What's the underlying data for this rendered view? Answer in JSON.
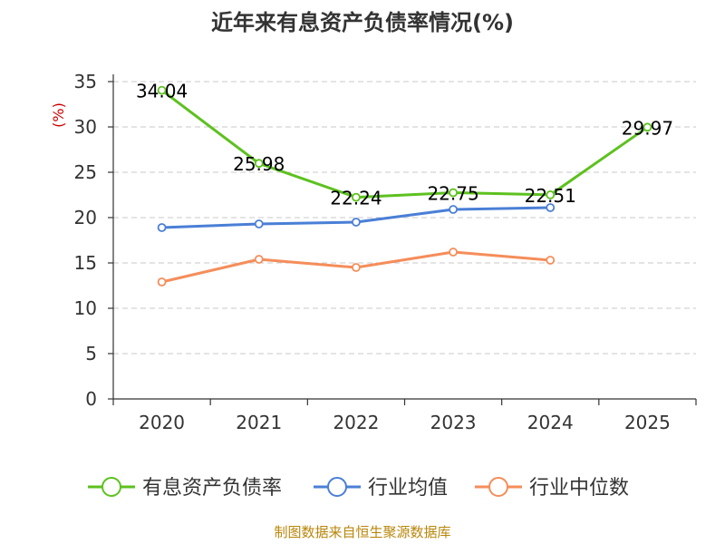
{
  "chart_data": {
    "type": "line",
    "title": "近年来有息资产负债率情况(%)",
    "ylabel": "(%)",
    "xlabel": "",
    "categories": [
      "2020",
      "2021",
      "2022",
      "2023",
      "2024",
      "2025"
    ],
    "ylim": [
      0,
      35
    ],
    "yticks": [
      0,
      5,
      10,
      15,
      20,
      25,
      30,
      35
    ],
    "grid": true,
    "legend_position": "bottom",
    "series": [
      {
        "name": "有息资产负债率",
        "color": "#5dc11f",
        "values": [
          34.04,
          25.98,
          22.24,
          22.75,
          22.51,
          29.97
        ],
        "labels": [
          "34.04",
          "25.98",
          "22.24",
          "22.75",
          "22.51",
          "29.97"
        ]
      },
      {
        "name": "行业均值",
        "color": "#4a7fd6",
        "values": [
          18.9,
          19.3,
          19.5,
          20.9,
          21.1,
          null
        ]
      },
      {
        "name": "行业中位数",
        "color": "#f58d5a",
        "values": [
          12.9,
          15.4,
          14.5,
          16.2,
          15.3,
          null
        ]
      }
    ],
    "source": "制图数据来自恒生聚源数据库"
  }
}
